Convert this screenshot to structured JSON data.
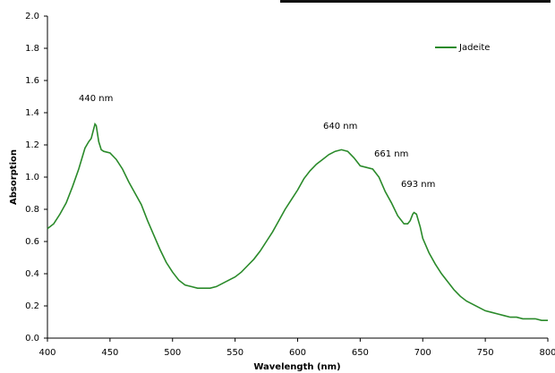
{
  "chart_data": {
    "type": "line",
    "xlabel": "Wavelength (nm)",
    "ylabel": "Absorption",
    "x": [
      400,
      405,
      410,
      415,
      420,
      425,
      430,
      433,
      435,
      437,
      438,
      439,
      441,
      443,
      445,
      450,
      455,
      460,
      465,
      470,
      475,
      480,
      485,
      490,
      495,
      500,
      505,
      510,
      515,
      520,
      525,
      530,
      535,
      540,
      545,
      550,
      555,
      560,
      565,
      570,
      575,
      580,
      585,
      590,
      595,
      600,
      605,
      610,
      615,
      620,
      625,
      630,
      635,
      640,
      645,
      648,
      650,
      655,
      660,
      665,
      670,
      675,
      680,
      685,
      688,
      690,
      692,
      693,
      695,
      698,
      700,
      705,
      710,
      715,
      720,
      725,
      730,
      735,
      740,
      745,
      750,
      755,
      760,
      765,
      770,
      775,
      780,
      785,
      790,
      795,
      800
    ],
    "series": [
      {
        "name": "Jadeite",
        "color": "#2a8a2a",
        "values": [
          0.68,
          0.71,
          0.77,
          0.84,
          0.94,
          1.05,
          1.18,
          1.22,
          1.24,
          1.3,
          1.33,
          1.32,
          1.22,
          1.17,
          1.16,
          1.15,
          1.11,
          1.05,
          0.97,
          0.9,
          0.83,
          0.73,
          0.64,
          0.55,
          0.47,
          0.41,
          0.36,
          0.33,
          0.32,
          0.31,
          0.31,
          0.31,
          0.32,
          0.34,
          0.36,
          0.38,
          0.41,
          0.45,
          0.49,
          0.54,
          0.6,
          0.66,
          0.73,
          0.8,
          0.86,
          0.92,
          0.99,
          1.04,
          1.08,
          1.11,
          1.14,
          1.16,
          1.17,
          1.16,
          1.12,
          1.09,
          1.07,
          1.06,
          1.05,
          1.0,
          0.91,
          0.84,
          0.76,
          0.71,
          0.71,
          0.73,
          0.77,
          0.78,
          0.77,
          0.69,
          0.62,
          0.53,
          0.46,
          0.4,
          0.35,
          0.3,
          0.26,
          0.23,
          0.21,
          0.19,
          0.17,
          0.16,
          0.15,
          0.14,
          0.13,
          0.13,
          0.12,
          0.12,
          0.12,
          0.11,
          0.11
        ]
      }
    ],
    "annotations": [
      "440 nm",
      "640 nm",
      "661 nm",
      "693 nm"
    ],
    "xlim": [
      400,
      800
    ],
    "xticks": [
      400,
      450,
      500,
      550,
      600,
      650,
      700,
      750,
      800
    ],
    "ylim": [
      0,
      2
    ],
    "yticks": [
      {
        "value": 0,
        "label": "0.0"
      },
      0.2,
      0.4,
      0.6,
      0.8,
      {
        "value": 1,
        "label": "1.0"
      },
      1.2,
      1.4,
      1.6,
      1.8,
      {
        "value": 2,
        "label": "2.0"
      }
    ],
    "legend": "upper-right",
    "grid": false
  }
}
